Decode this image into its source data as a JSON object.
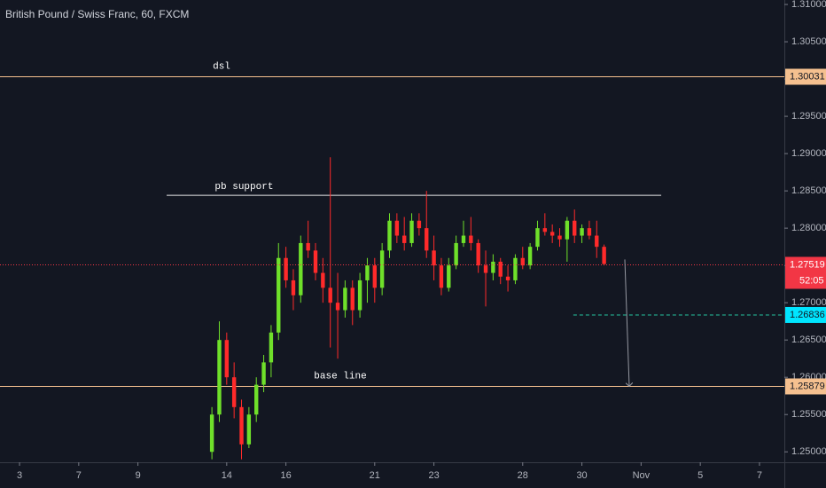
{
  "chart_data": {
    "type": "candlestick",
    "title": "British Pound / Swiss Franc, 60, FXCM",
    "xlim": [
      -0.66,
      25.84
    ],
    "ylim": [
      1.2486,
      1.3106
    ],
    "xticks": [
      {
        "value": 0,
        "label": "3"
      },
      {
        "value": 2,
        "label": "7"
      },
      {
        "value": 4,
        "label": "9"
      },
      {
        "value": 7,
        "label": "14"
      },
      {
        "value": 9,
        "label": "16"
      },
      {
        "value": 12,
        "label": "21"
      },
      {
        "value": 14,
        "label": "23"
      },
      {
        "value": 17,
        "label": "28"
      },
      {
        "value": 19,
        "label": "30"
      },
      {
        "value": 21,
        "label": "Nov"
      },
      {
        "value": 23,
        "label": "5"
      },
      {
        "value": 25,
        "label": "7"
      }
    ],
    "yticks": [
      {
        "value": 1.31,
        "label": "1.31000"
      },
      {
        "value": 1.305,
        "label": "1.30500"
      },
      {
        "value": 1.3,
        "label": "1.30000"
      },
      {
        "value": 1.295,
        "label": "1.29500"
      },
      {
        "value": 1.29,
        "label": "1.29000"
      },
      {
        "value": 1.285,
        "label": "1.28500"
      },
      {
        "value": 1.28,
        "label": "1.28000"
      },
      {
        "value": 1.275,
        "label": "1.27500"
      },
      {
        "value": 1.27,
        "label": "1.27000"
      },
      {
        "value": 1.265,
        "label": "1.26500"
      },
      {
        "value": 1.26,
        "label": "1.26000"
      },
      {
        "value": 1.255,
        "label": "1.25500"
      },
      {
        "value": 1.25,
        "label": "1.25000"
      }
    ],
    "up_color": "#6fe02a",
    "down_color": "#ff2a2a",
    "candles": {
      "x": [
        6.5,
        6.75,
        7.0,
        7.25,
        7.5,
        7.75,
        8.0,
        8.25,
        8.5,
        8.75,
        9.0,
        9.25,
        9.5,
        9.75,
        10.0,
        10.25,
        10.5,
        10.75,
        11.0,
        11.25,
        11.5,
        11.75,
        12.0,
        12.25,
        12.5,
        12.75,
        13.0,
        13.25,
        13.5,
        13.75,
        14.0,
        14.25,
        14.5,
        14.75,
        15.0,
        15.25,
        15.5,
        15.75,
        16.0,
        16.25,
        16.5,
        16.75,
        17.0,
        17.25,
        17.5,
        17.75,
        18.0,
        18.25,
        18.5,
        18.75,
        19.0,
        19.25,
        19.5,
        19.75
      ],
      "open": [
        1.25,
        1.255,
        1.265,
        1.26,
        1.256,
        1.251,
        1.255,
        1.259,
        1.262,
        1.266,
        1.276,
        1.273,
        1.271,
        1.278,
        1.277,
        1.274,
        1.272,
        1.27,
        1.269,
        1.272,
        1.269,
        1.273,
        1.275,
        1.272,
        1.277,
        1.281,
        1.279,
        1.278,
        1.281,
        1.28,
        1.277,
        1.275,
        1.272,
        1.275,
        1.278,
        1.279,
        1.278,
        1.275,
        1.274,
        1.2755,
        1.2735,
        1.273,
        1.276,
        1.275,
        1.2775,
        1.28,
        1.2795,
        1.279,
        1.2785,
        1.281,
        1.279,
        1.28,
        1.279,
        1.2775
      ],
      "high": [
        1.256,
        1.2675,
        1.266,
        1.262,
        1.257,
        1.256,
        1.26,
        1.263,
        1.267,
        1.278,
        1.2775,
        1.2745,
        1.279,
        1.281,
        1.278,
        1.276,
        1.2895,
        1.274,
        1.273,
        1.273,
        1.274,
        1.276,
        1.276,
        1.278,
        1.282,
        1.282,
        1.2815,
        1.282,
        1.282,
        1.285,
        1.279,
        1.276,
        1.276,
        1.279,
        1.281,
        1.2815,
        1.2785,
        1.277,
        1.2765,
        1.276,
        1.275,
        1.2765,
        1.2775,
        1.278,
        1.281,
        1.282,
        1.2805,
        1.28,
        1.2815,
        1.2825,
        1.2805,
        1.281,
        1.281,
        1.2778
      ],
      "low": [
        1.249,
        1.254,
        1.259,
        1.2545,
        1.249,
        1.2505,
        1.254,
        1.258,
        1.26,
        1.265,
        1.272,
        1.269,
        1.27,
        1.276,
        1.273,
        1.27,
        1.264,
        1.2625,
        1.268,
        1.267,
        1.268,
        1.27,
        1.27,
        1.271,
        1.276,
        1.278,
        1.277,
        1.2775,
        1.279,
        1.276,
        1.273,
        1.271,
        1.2715,
        1.2745,
        1.2775,
        1.277,
        1.274,
        1.2695,
        1.273,
        1.2725,
        1.2715,
        1.2725,
        1.2745,
        1.2745,
        1.277,
        1.279,
        1.278,
        1.2775,
        1.2755,
        1.278,
        1.278,
        1.2785,
        1.276,
        1.275
      ],
      "close": [
        1.255,
        1.265,
        1.26,
        1.256,
        1.251,
        1.255,
        1.259,
        1.262,
        1.266,
        1.276,
        1.273,
        1.271,
        1.278,
        1.277,
        1.274,
        1.272,
        1.27,
        1.269,
        1.272,
        1.269,
        1.273,
        1.275,
        1.272,
        1.277,
        1.281,
        1.279,
        1.278,
        1.281,
        1.28,
        1.277,
        1.275,
        1.272,
        1.275,
        1.278,
        1.279,
        1.278,
        1.275,
        1.274,
        1.2755,
        1.2735,
        1.273,
        1.276,
        1.275,
        1.2775,
        1.28,
        1.2795,
        1.279,
        1.2785,
        1.281,
        1.279,
        1.28,
        1.279,
        1.2775,
        1.27519
      ]
    },
    "levels": [
      {
        "label": "dsl",
        "value": 1.30031,
        "color": "#f5c08f"
      },
      {
        "label": "base line",
        "value": 1.25879,
        "color": "#f5c08f"
      }
    ],
    "trendline": {
      "label": "pb support",
      "x": [
        4.97,
        21.68
      ],
      "y": [
        1.2844,
        1.2844
      ],
      "color": "#e8e8e8"
    },
    "last_price": {
      "value": 1.27519,
      "countdown": "52:05",
      "color": "#f23645"
    },
    "target": {
      "value": 1.26836,
      "x_start": 18.71,
      "color": "#26c6a0",
      "label_color": "#00e5ff"
    },
    "arrow": {
      "x": [
        20.45,
        20.6
      ],
      "y": [
        1.2758,
        1.25879
      ],
      "color": "#9598a1"
    }
  }
}
